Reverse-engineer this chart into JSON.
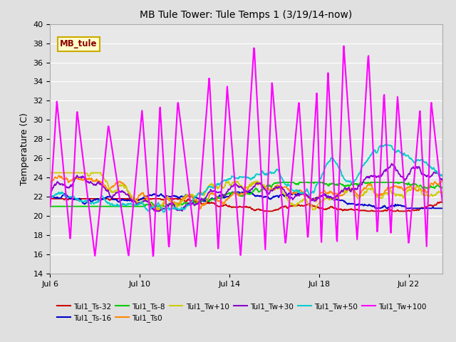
{
  "title": "MB Tule Tower: Tule Temps 1 (3/19/14-now)",
  "ylabel": "Temperature (C)",
  "ylim": [
    14,
    40
  ],
  "yticks": [
    14,
    16,
    18,
    20,
    22,
    24,
    26,
    28,
    30,
    32,
    34,
    36,
    38,
    40
  ],
  "xtick_labels": [
    "Jul 6",
    "Jul 10",
    "Jul 14",
    "Jul 18",
    "Jul 22"
  ],
  "xtick_positions": [
    0,
    4,
    8,
    12,
    16
  ],
  "xlim": [
    0,
    17.5
  ],
  "bg_color": "#e0e0e0",
  "plot_bg_color": "#e8e8e8",
  "grid_color": "#ffffff",
  "series": [
    {
      "label": "Tul1_Ts-32",
      "color": "#cc0000",
      "lw": 1.3
    },
    {
      "label": "Tul1_Ts-16",
      "color": "#0000cc",
      "lw": 1.3
    },
    {
      "label": "Tul1_Ts-8",
      "color": "#00cc00",
      "lw": 1.3
    },
    {
      "label": "Tul1_Ts0",
      "color": "#ff8800",
      "lw": 1.3
    },
    {
      "label": "Tul1_Tw+10",
      "color": "#cccc00",
      "lw": 1.3
    },
    {
      "label": "Tul1_Tw+30",
      "color": "#8800cc",
      "lw": 1.3
    },
    {
      "label": "Tul1_Tw+50",
      "color": "#00cccc",
      "lw": 1.3
    },
    {
      "label": "Tul1_Tw+100",
      "color": "#ff00ff",
      "lw": 1.5
    }
  ],
  "annotation_text": "MB_tule",
  "annotation_color": "#8b0000",
  "annotation_bg": "#ffffcc",
  "annotation_edge": "#ccaa00"
}
